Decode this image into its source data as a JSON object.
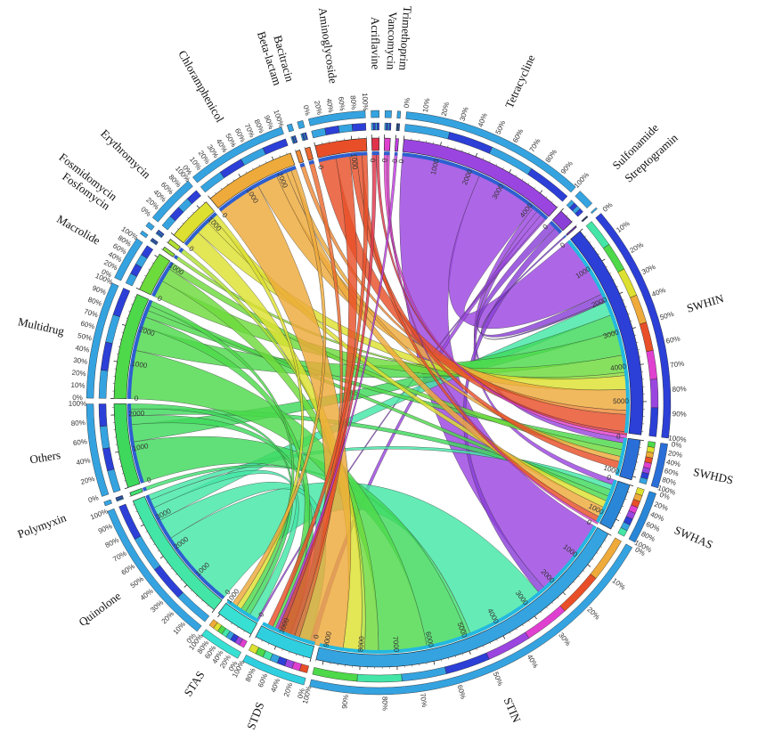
{
  "chart_data": {
    "type": "chord",
    "title": "",
    "start_angle_deg": 5.5,
    "gap_deg": 1.15,
    "total_deg": 360,
    "groups": [
      {
        "name": "Tetracycline",
        "side": "ARG",
        "size": 4600,
        "color": "#9b45e0",
        "ticks": [
          0,
          1000,
          2000,
          3000,
          4000
        ]
      },
      {
        "name": "Sulfonamide",
        "side": "ARG",
        "size": 420,
        "color": "#8a3fd8",
        "ticks": [
          0
        ]
      },
      {
        "name": "Streptogramin",
        "side": "ARG",
        "size": 40,
        "color": "#7a38cf",
        "ticks": []
      },
      {
        "name": "SWHIN",
        "side": "sample",
        "size": 5900,
        "color": "#2c3fd6",
        "ticks": [
          0,
          1000,
          2000,
          3000,
          4000,
          5000
        ]
      },
      {
        "name": "SWHDS",
        "side": "sample",
        "size": 1100,
        "color": "#2a6fd8",
        "ticks": [
          0,
          1000
        ]
      },
      {
        "name": "SWHAS",
        "side": "sample",
        "size": 1300,
        "color": "#2a86d6",
        "ticks": [
          0,
          1000
        ]
      },
      {
        "name": "STIN",
        "side": "sample",
        "size": 9200,
        "color": "#35a3e0",
        "ticks": [
          0,
          1000,
          2000,
          3000,
          4000,
          5000,
          6000,
          7000,
          8000,
          9000
        ]
      },
      {
        "name": "STDS",
        "side": "sample",
        "size": 1600,
        "color": "#2fcfe0",
        "ticks": [
          0,
          1000
        ]
      },
      {
        "name": "STAS",
        "side": "sample",
        "size": 1050,
        "color": "#37e0d2",
        "ticks": [
          0,
          1000
        ]
      },
      {
        "name": "Quinolone",
        "side": "ARG",
        "size": 3700,
        "color": "#43e6a6",
        "ticks": [
          0,
          1000,
          2000,
          3000
        ]
      },
      {
        "name": "Polymyxin",
        "side": "ARG",
        "size": 100,
        "color": "#40e070",
        "ticks": []
      },
      {
        "name": "Others",
        "side": "ARG",
        "size": 2300,
        "color": "#3ed95c",
        "ticks": [
          0,
          1000,
          2000
        ]
      },
      {
        "name": "Multidrug",
        "side": "ARG",
        "size": 2900,
        "color": "#4dd94a",
        "ticks": [
          0,
          1000,
          2000
        ]
      },
      {
        "name": "Macrolide",
        "side": "ARG",
        "size": 1100,
        "color": "#6ddb3c",
        "ticks": [
          0,
          1000
        ]
      },
      {
        "name": "Fosfomycin",
        "side": "ARG",
        "size": 90,
        "color": "#8ede3a",
        "ticks": []
      },
      {
        "name": "Fosmidomycin",
        "side": "ARG",
        "size": 120,
        "color": "#b1e033",
        "ticks": []
      },
      {
        "name": "Erythromycin",
        "side": "ARG",
        "size": 1250,
        "color": "#dde030",
        "ticks": [
          0,
          1000
        ]
      },
      {
        "name": "Chloramphenicol",
        "side": "ARG",
        "size": 2500,
        "color": "#eeaa3a",
        "ticks": [
          0,
          1000,
          2000
        ]
      },
      {
        "name": "Beta-lactam",
        "side": "ARG",
        "size": 120,
        "color": "#ee8a36",
        "ticks": []
      },
      {
        "name": "Bacitracin",
        "side": "ARG",
        "size": 140,
        "color": "#ec6a30",
        "ticks": []
      },
      {
        "name": "Aminoglycoside",
        "side": "ARG",
        "size": 1400,
        "color": "#e84f28",
        "ticks": [
          0,
          1000
        ]
      },
      {
        "name": "Acriflavine",
        "side": "ARG",
        "size": 200,
        "color": "#e0344a",
        "ticks": [
          0
        ]
      },
      {
        "name": "Vancomycin",
        "side": "ARG",
        "size": 160,
        "color": "#e040d0",
        "ticks": [
          0
        ]
      },
      {
        "name": "Trimethoprim",
        "side": "ARG",
        "size": 80,
        "color": "#c43ce6",
        "ticks": [
          0
        ]
      }
    ],
    "flows": [
      {
        "from": "Tetracycline",
        "to": "STIN",
        "value": 2300
      },
      {
        "from": "Tetracycline",
        "to": "SWHIN",
        "value": 1800
      },
      {
        "from": "Tetracycline",
        "to": "SWHDS",
        "value": 150
      },
      {
        "from": "Tetracycline",
        "to": "SWHAS",
        "value": 150
      },
      {
        "from": "Tetracycline",
        "to": "STDS",
        "value": 150
      },
      {
        "from": "Tetracycline",
        "to": "STAS",
        "value": 50
      },
      {
        "from": "Sulfonamide",
        "to": "SWHIN",
        "value": 220
      },
      {
        "from": "Sulfonamide",
        "to": "STIN",
        "value": 200
      },
      {
        "from": "Streptogramin",
        "to": "SWHIN",
        "value": 40
      },
      {
        "from": "Quinolone",
        "to": "STIN",
        "value": 2300
      },
      {
        "from": "Quinolone",
        "to": "STDS",
        "value": 600
      },
      {
        "from": "Quinolone",
        "to": "SWHIN",
        "value": 400
      },
      {
        "from": "Quinolone",
        "to": "STAS",
        "value": 250
      },
      {
        "from": "Quinolone",
        "to": "SWHAS",
        "value": 150
      },
      {
        "from": "Polymyxin",
        "to": "STIN",
        "value": 100
      },
      {
        "from": "Others",
        "to": "STIN",
        "value": 1200
      },
      {
        "from": "Others",
        "to": "SWHIN",
        "value": 500
      },
      {
        "from": "Others",
        "to": "STDS",
        "value": 250
      },
      {
        "from": "Others",
        "to": "SWHAS",
        "value": 200
      },
      {
        "from": "Others",
        "to": "STAS",
        "value": 150
      },
      {
        "from": "Multidrug",
        "to": "STIN",
        "value": 1400
      },
      {
        "from": "Multidrug",
        "to": "SWHIN",
        "value": 700
      },
      {
        "from": "Multidrug",
        "to": "STDS",
        "value": 300
      },
      {
        "from": "Multidrug",
        "to": "SWHDS",
        "value": 200
      },
      {
        "from": "Multidrug",
        "to": "SWHAS",
        "value": 150
      },
      {
        "from": "Multidrug",
        "to": "STAS",
        "value": 150
      },
      {
        "from": "Macrolide",
        "to": "SWHIN",
        "value": 500
      },
      {
        "from": "Macrolide",
        "to": "STIN",
        "value": 400
      },
      {
        "from": "Macrolide",
        "to": "SWHDS",
        "value": 200
      },
      {
        "from": "Fosfomycin",
        "to": "SWHIN",
        "value": 90
      },
      {
        "from": "Fosmidomycin",
        "to": "STIN",
        "value": 120
      },
      {
        "from": "Erythromycin",
        "to": "STIN",
        "value": 500
      },
      {
        "from": "Erythromycin",
        "to": "SWHIN",
        "value": 400
      },
      {
        "from": "Erythromycin",
        "to": "SWHAS",
        "value": 200
      },
      {
        "from": "Erythromycin",
        "to": "STAS",
        "value": 150
      },
      {
        "from": "Chloramphenicol",
        "to": "STIN",
        "value": 1300
      },
      {
        "from": "Chloramphenicol",
        "to": "SWHIN",
        "value": 600
      },
      {
        "from": "Chloramphenicol",
        "to": "SWHAS",
        "value": 300
      },
      {
        "from": "Chloramphenicol",
        "to": "SWHDS",
        "value": 150
      },
      {
        "from": "Chloramphenicol",
        "to": "STAS",
        "value": 150
      },
      {
        "from": "Beta-lactam",
        "to": "SWHIN",
        "value": 120
      },
      {
        "from": "Bacitracin",
        "to": "STIN",
        "value": 140
      },
      {
        "from": "Aminoglycoside",
        "to": "SWHIN",
        "value": 500
      },
      {
        "from": "Aminoglycoside",
        "to": "STIN",
        "value": 400
      },
      {
        "from": "Aminoglycoside",
        "to": "SWHDS",
        "value": 200
      },
      {
        "from": "Aminoglycoside",
        "to": "SWHAS",
        "value": 150
      },
      {
        "from": "Aminoglycoside",
        "to": "STDS",
        "value": 150
      },
      {
        "from": "Acriflavine",
        "to": "STIN",
        "value": 120
      },
      {
        "from": "Acriflavine",
        "to": "SWHIN",
        "value": 80
      },
      {
        "from": "Vancomycin",
        "to": "SWHIN",
        "value": 100
      },
      {
        "from": "Vancomycin",
        "to": "SWHAS",
        "value": 60
      },
      {
        "from": "Trimethoprim",
        "to": "STIN",
        "value": 80
      }
    ],
    "percent_ticks": [
      "0%",
      "10%",
      "20%",
      "30%",
      "40%",
      "50%",
      "60%",
      "70%",
      "80%",
      "90%",
      "100%"
    ],
    "percent_ticks_short": [
      "0%",
      "20%",
      "40%",
      "60%",
      "80%",
      "100%"
    ]
  }
}
